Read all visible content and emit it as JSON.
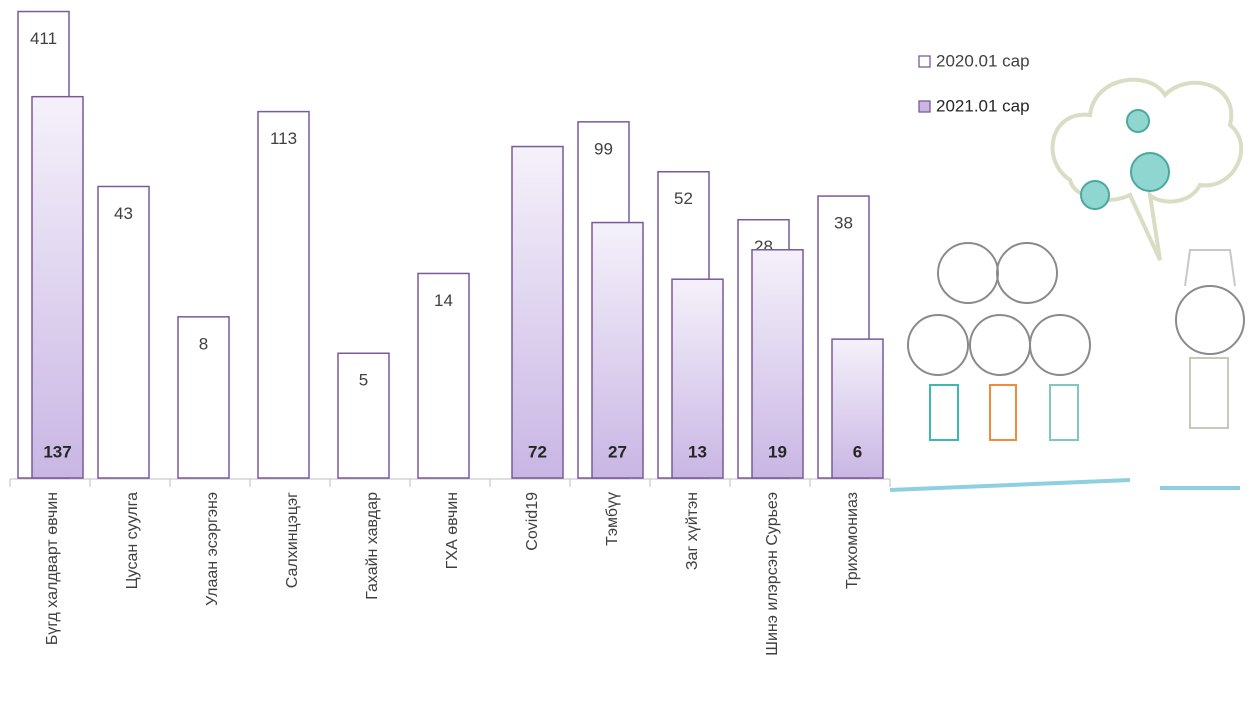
{
  "chart_data": {
    "type": "bar",
    "categories": [
      "Бүгд халдварт өвчин",
      "Цусан суулга",
      "Улаан эсэргэнэ",
      "Салхинцэцэг",
      "Гахайн хавдар",
      "ГХА өвчин",
      "Covid19",
      "Тэмбүү",
      "Заг хүйтэн",
      "Шинэ илэрсэн Сурьеэ",
      "Трихомониаз"
    ],
    "series": [
      {
        "name": "2020.01 сар",
        "color": "#ffffff",
        "values": [
          411,
          43,
          8,
          113,
          5,
          14,
          null,
          99,
          52,
          28,
          38
        ]
      },
      {
        "name": "2021.01 сар",
        "color": "#c9b6e4",
        "values": [
          137,
          null,
          null,
          null,
          null,
          null,
          72,
          27,
          13,
          19,
          6
        ]
      }
    ],
    "ylim": [
      1,
      450
    ],
    "log": true,
    "legend": "top-right"
  }
}
